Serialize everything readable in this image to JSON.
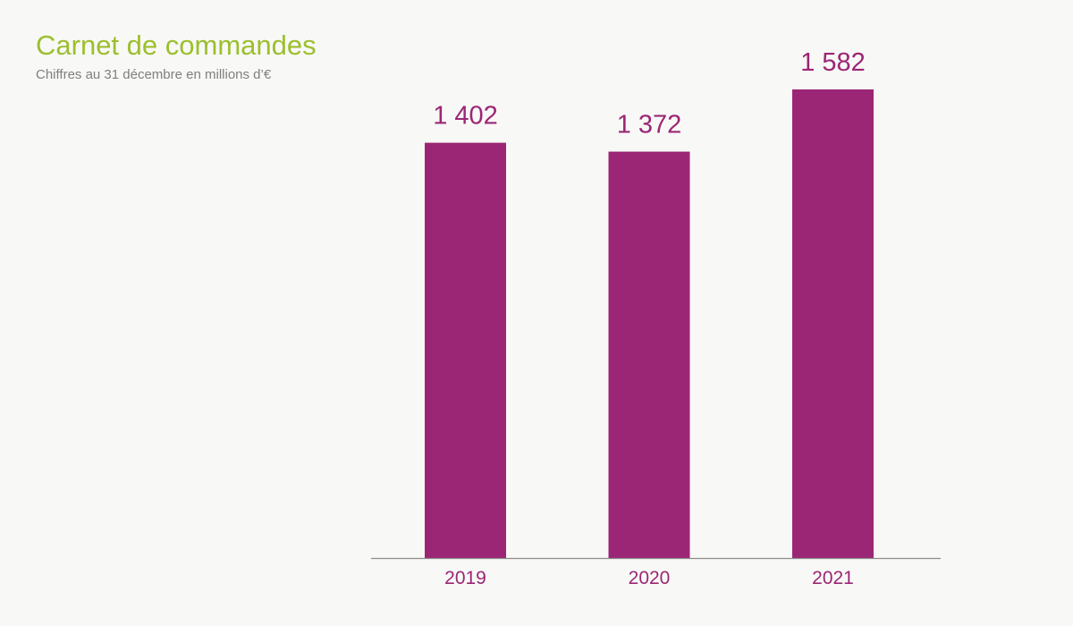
{
  "header": {
    "title": "Carnet de commandes",
    "subtitle": "Chiffres au 31 décembre en millions d’€"
  },
  "colors": {
    "title": "#9cbf2e",
    "subtitle": "#7f7f7f",
    "bar": "#9b2675",
    "label": "#9b2675",
    "axis": "#8c8c8c",
    "background": "#f8f8f6"
  },
  "chart_data": {
    "type": "bar",
    "categories": [
      "2019",
      "2020",
      "2021"
    ],
    "values": [
      1402,
      1372,
      1582
    ],
    "value_labels": [
      "1 402",
      "1 372",
      "1 582"
    ],
    "title": "Carnet de commandes",
    "subtitle": "Chiffres au 31 décembre en millions d’€",
    "ylim": [
      0,
      1582
    ],
    "grid": false,
    "legend": "none"
  }
}
